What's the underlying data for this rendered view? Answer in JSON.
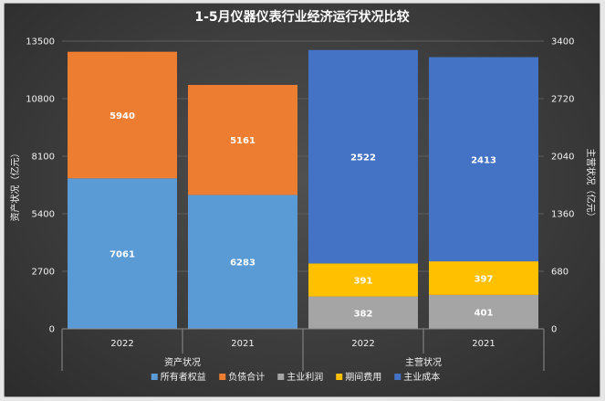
{
  "chart_data": {
    "type": "bar",
    "stacked": true,
    "title": "1-5月仪器仪表行业经济运行状况比较",
    "y_left": {
      "label": "资产状况（亿元）",
      "range": [
        0,
        13500
      ],
      "ticks": [
        "0",
        "2700",
        "5400",
        "8100",
        "10800",
        "13500"
      ]
    },
    "y_right": {
      "label": "主营状况（亿元）",
      "range": [
        0,
        3400
      ],
      "ticks": [
        "0",
        "680",
        "1360",
        "2040",
        "2720",
        "3400"
      ]
    },
    "groups": [
      {
        "name": "资产状况",
        "axis": "left",
        "categories": [
          "2022",
          "2021"
        ],
        "series": [
          {
            "name": "所有者权益",
            "color": "#5b9bd5",
            "values": [
              7061,
              6283
            ]
          },
          {
            "name": "负债合计",
            "color": "#ed7d31",
            "values": [
              5940,
              5161
            ]
          }
        ]
      },
      {
        "name": "主营状况",
        "axis": "right",
        "categories": [
          "2022",
          "2021"
        ],
        "series": [
          {
            "name": "主业利润",
            "color": "#a5a5a5",
            "values": [
              382,
              401
            ]
          },
          {
            "name": "期间费用",
            "color": "#ffc000",
            "values": [
              391,
              397
            ]
          },
          {
            "name": "主业成本",
            "color": "#4472c4",
            "values": [
              2522,
              2413
            ]
          }
        ]
      }
    ],
    "legend": {
      "position": "bottom",
      "items": [
        {
          "name": "所有者权益",
          "color": "#5b9bd5"
        },
        {
          "name": "负债合计",
          "color": "#ed7d31"
        },
        {
          "name": "主业利润",
          "color": "#a5a5a5"
        },
        {
          "name": "期间费用",
          "color": "#ffc000"
        },
        {
          "name": "主业成本",
          "color": "#4472c4"
        }
      ]
    }
  }
}
